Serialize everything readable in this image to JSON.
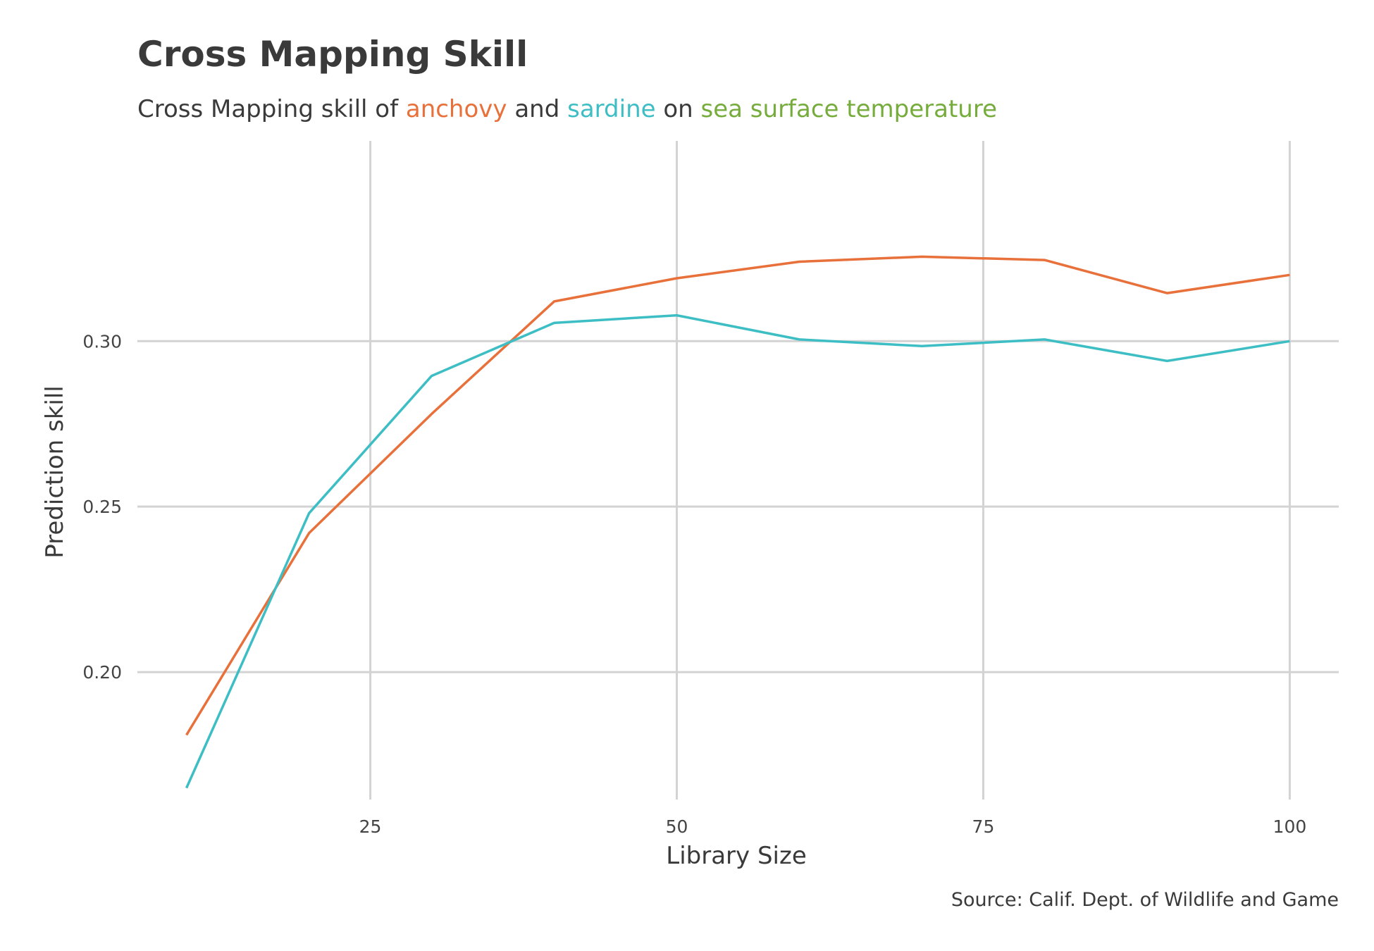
{
  "title": "Cross Mapping Skill",
  "subtitle": {
    "prefix": "Cross Mapping skill of ",
    "anchovy": "anchovy",
    "and": " and ",
    "sardine": "sardine",
    "on": " on ",
    "sst": "sea surface temperature"
  },
  "caption": "Source: Calif. Dept. of Wildlife and Game",
  "colors": {
    "anchovy": "#E8703A",
    "sardine": "#3DBEC4",
    "sst": "#76AC3C",
    "grid": "#D3D3D3",
    "text": "#3a3a3a"
  },
  "chart_data": {
    "type": "line",
    "title": "Cross Mapping Skill",
    "xlabel": "Library Size",
    "ylabel": "Prediction skill",
    "x": [
      10,
      20,
      30,
      40,
      50,
      60,
      70,
      80,
      90,
      100
    ],
    "series": [
      {
        "name": "anchovy",
        "color": "#E8703A",
        "values": [
          0.181,
          0.242,
          0.278,
          0.312,
          0.319,
          0.324,
          0.3255,
          0.3245,
          0.3145,
          0.32
        ]
      },
      {
        "name": "sardine",
        "color": "#3DBEC4",
        "values": [
          0.165,
          0.248,
          0.2895,
          0.3055,
          0.3078,
          0.3005,
          0.2985,
          0.3005,
          0.294,
          0.3
        ]
      }
    ],
    "xlim": [
      6,
      104
    ],
    "ylim": [
      0.1615,
      0.3605
    ],
    "xticks": [
      25,
      50,
      75,
      100
    ],
    "xtick_labels": [
      "25",
      "50",
      "75",
      "100"
    ],
    "yticks": [
      0.2,
      0.25,
      0.3
    ],
    "ytick_labels": [
      "0.20",
      "0.25",
      "0.30"
    ],
    "grid": true,
    "legend": "none"
  }
}
